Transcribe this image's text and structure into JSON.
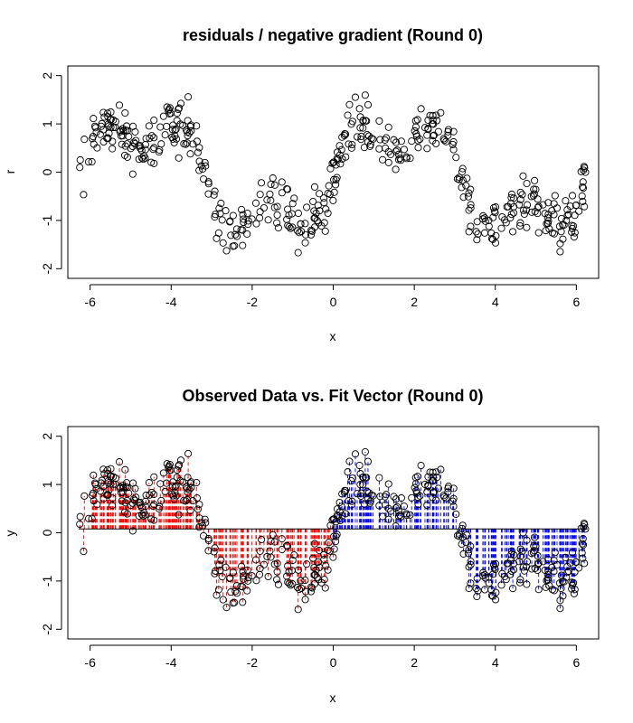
{
  "chart_data": [
    {
      "type": "scatter",
      "title": "residuals / negative gradient (Round 0)",
      "xlabel": "x",
      "ylabel": "r",
      "xlim": [
        -6.55,
        6.55
      ],
      "ylim": [
        -2.2,
        2.2
      ],
      "x_ticks": [
        -6,
        -4,
        -2,
        0,
        2,
        4,
        6
      ],
      "y_ticks": [
        -2,
        -1,
        0,
        1,
        2
      ],
      "x_tick_labels": [
        "-6",
        "-4",
        "-2",
        "0",
        "2",
        "4",
        "6"
      ],
      "y_tick_labels": [
        "-2",
        "-1",
        "0",
        "1",
        "2"
      ],
      "point_marker": "open-circle",
      "point_color": "#000000",
      "n_points": 500,
      "x_range": [
        -6.28,
        6.28
      ],
      "y_offset": -0.08,
      "approx_signal": "sin(x) + 0.5*sin(3x)",
      "noise_sd": 0.25,
      "grid": false
    },
    {
      "type": "scatter",
      "title": "Observed Data vs. Fit Vector (Round 0)",
      "xlabel": "x",
      "ylabel": "y",
      "xlim": [
        -6.55,
        6.55
      ],
      "ylim": [
        -2.2,
        2.2
      ],
      "x_ticks": [
        -6,
        -4,
        -2,
        0,
        2,
        4,
        6
      ],
      "y_ticks": [
        -2,
        -1,
        0,
        1,
        2
      ],
      "x_tick_labels": [
        "-6",
        "-4",
        "-2",
        "0",
        "2",
        "4",
        "6"
      ],
      "y_tick_labels": [
        "-2",
        "-1",
        "0",
        "1",
        "2"
      ],
      "point_marker": "open-circle",
      "point_color": "#000000",
      "n_points": 500,
      "x_range": [
        -6.28,
        6.28
      ],
      "fit_line": {
        "y": 0.08,
        "x_range": [
          -6.28,
          6.28
        ],
        "color": "#000000"
      },
      "residual_segments": {
        "style": "dashed",
        "color_below": "#ff0000",
        "color_above": "#0000ff"
      },
      "approx_signal": "sin(x) + 0.5*sin(3x)",
      "noise_sd": 0.25,
      "grid": false
    }
  ]
}
